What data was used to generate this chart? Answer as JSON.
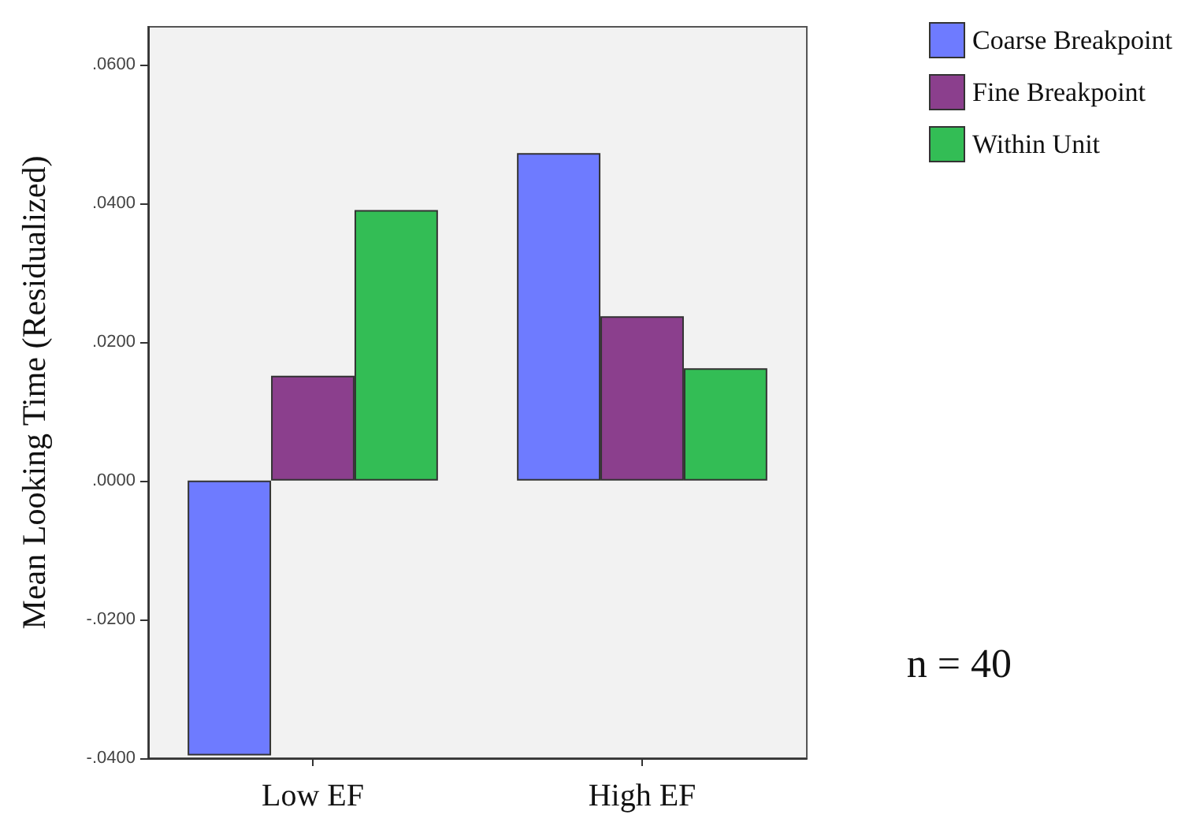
{
  "chart_data": {
    "type": "bar",
    "ylabel": "Mean Looking Time (Residualized)",
    "categories": [
      "Low EF",
      "High EF"
    ],
    "series": [
      {
        "name": "Coarse Breakpoint",
        "color": "#6e7bff",
        "values": [
          -0.0396,
          0.0472
        ]
      },
      {
        "name": "Fine Breakpoint",
        "color": "#8b3f8d",
        "values": [
          0.0151,
          0.0237
        ]
      },
      {
        "name": "Within Unit",
        "color": "#33bd55",
        "values": [
          0.039,
          0.0162
        ]
      }
    ],
    "ylim": [
      -0.04,
      0.0654
    ],
    "yticks": [
      {
        "value": -0.04,
        "label": "-.0400"
      },
      {
        "value": -0.02,
        "label": "-.0200"
      },
      {
        "value": 0,
        "label": ".0000"
      },
      {
        "value": 0.02,
        "label": ".0200"
      },
      {
        "value": 0.04,
        "label": ".0400"
      },
      {
        "value": 0.06,
        "label": ".0600"
      }
    ],
    "grid": false,
    "legend": "top right",
    "annotations": [
      "n = 40"
    ]
  }
}
